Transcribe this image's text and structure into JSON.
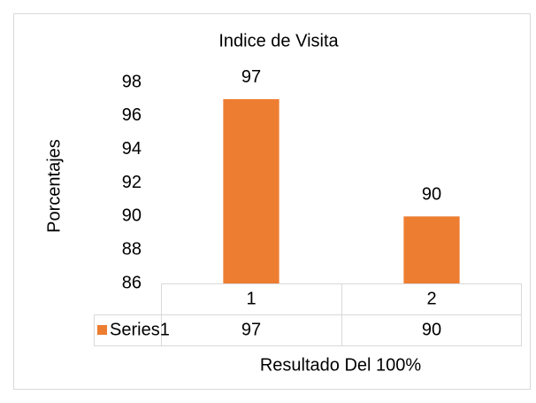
{
  "chart_data": {
    "type": "bar",
    "title": "Indice de Visita",
    "categories": [
      "1",
      "2"
    ],
    "series": [
      {
        "name": "Series1",
        "color": "#ed7d31",
        "values": [
          97,
          90
        ]
      }
    ],
    "ylim": [
      86,
      98
    ],
    "yticks": [
      86,
      88,
      90,
      92,
      94,
      96,
      98
    ],
    "y_label": "Porcentajes",
    "x_label": "Resultado Del 100%",
    "grid": false
  }
}
